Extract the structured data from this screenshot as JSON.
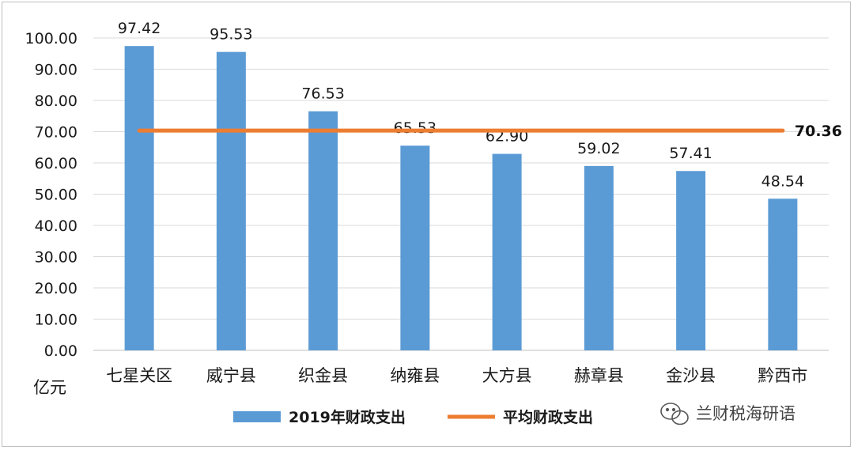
{
  "chart_data": {
    "type": "bar",
    "categories": [
      "七星关区",
      "威宁县",
      "织金县",
      "纳雍县",
      "大方县",
      "赫章县",
      "金沙县",
      "黔西市"
    ],
    "series": [
      {
        "name": "2019年财政支出",
        "type": "bar",
        "color": "#5b9bd5",
        "values": [
          97.42,
          95.53,
          76.53,
          65.53,
          62.9,
          59.02,
          57.41,
          48.54
        ],
        "value_labels": [
          "97.42",
          "95.53",
          "76.53",
          "65.53",
          "62.90",
          "59.02",
          "57.41",
          "48.54"
        ]
      },
      {
        "name": "平均财政支出",
        "type": "line",
        "color": "#ed7d31",
        "value": 70.36,
        "value_label": "70.36"
      }
    ],
    "ylabel": "亿元",
    "ylim": [
      0,
      100
    ],
    "yticks": [
      "0.00",
      "10.00",
      "20.00",
      "30.00",
      "40.00",
      "50.00",
      "60.00",
      "70.00",
      "80.00",
      "90.00",
      "100.00"
    ],
    "grid": true,
    "legend": "bottom"
  },
  "watermark": {
    "text": "兰财税海研语",
    "icon": "wechat-icon"
  }
}
